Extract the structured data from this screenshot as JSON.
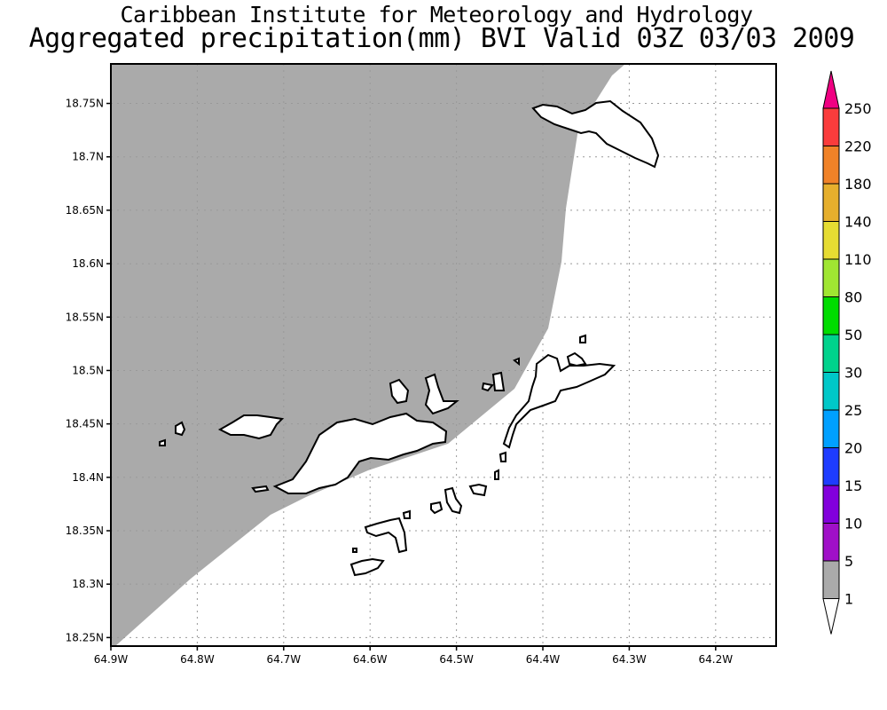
{
  "header": {
    "title_line1": "Caribbean Institute for Meteorology and Hydrology",
    "title_line2": "Aggregated precipitation(mm) BVI Valid 03Z 03/03 2009"
  },
  "map": {
    "lon_ticks": [
      "64.9W",
      "64.8W",
      "64.7W",
      "64.6W",
      "64.5W",
      "64.4W",
      "64.3W",
      "64.2W"
    ],
    "lat_ticks": [
      "18.75N",
      "18.7N",
      "18.65N",
      "18.6N",
      "18.55N",
      "18.5N",
      "18.45N",
      "18.4N",
      "18.35N",
      "18.3N",
      "18.25N"
    ],
    "lon_range_west": [
      64.9,
      64.13
    ],
    "lat_range": [
      18.242,
      18.787
    ],
    "shaded_class": "1",
    "shaded_color": "#aaaaaa",
    "grid": true
  },
  "colorbar": {
    "levels": [
      "1",
      "5",
      "10",
      "15",
      "20",
      "25",
      "30",
      "50",
      "80",
      "110",
      "140",
      "180",
      "220",
      "250"
    ],
    "colors": [
      "#aaaaaa",
      "#a010c8",
      "#8200dc",
      "#1e3cff",
      "#00a0ff",
      "#00c8c8",
      "#00d28c",
      "#00dc00",
      "#a0e632",
      "#e6dc32",
      "#e6af2d",
      "#f08228",
      "#fa3c3c",
      "#f00082"
    ]
  }
}
